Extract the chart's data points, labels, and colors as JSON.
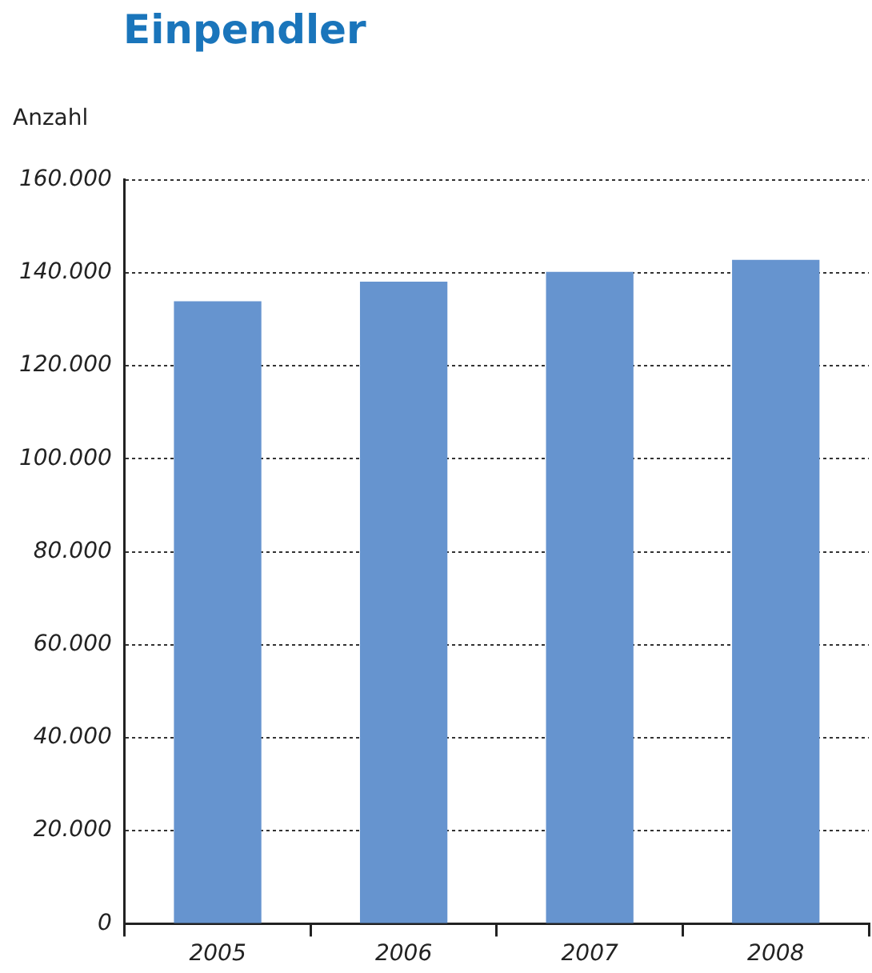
{
  "chart_data": {
    "type": "bar",
    "title": "Einpendler",
    "ylabel": "Anzahl",
    "categories": [
      "2005",
      "2006",
      "2007",
      "2008"
    ],
    "values": [
      133900,
      138100,
      140200,
      142800
    ],
    "color": "#6694cf",
    "ylim": [
      0,
      160000
    ],
    "yticks": [
      0,
      {
        "value": 20000,
        "label": "20.000"
      },
      {
        "value": 40000,
        "label": "40.000"
      },
      {
        "value": 60000,
        "label": "60.000"
      },
      {
        "value": 80000,
        "label": "80.000"
      },
      {
        "value": 100000,
        "label": "100.000"
      },
      {
        "value": 120000,
        "label": "120.000"
      },
      {
        "value": 140000,
        "label": "140.000"
      },
      {
        "value": 160000,
        "label": "160.000"
      }
    ],
    "grid": "y",
    "legend": false
  }
}
